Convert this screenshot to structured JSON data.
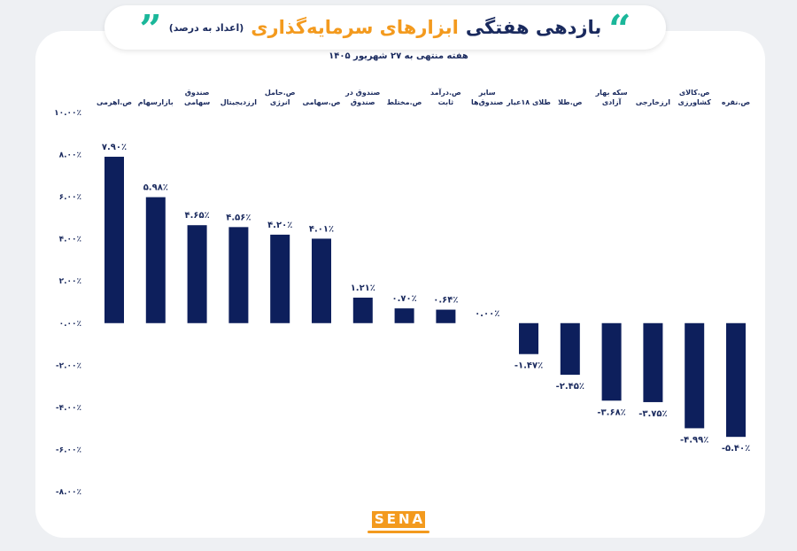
{
  "title": {
    "main": "بازدهی هفتگی",
    "accent": "ابزارهای سرمایه‌گذاری",
    "note": "(اعداد به درصد)",
    "open_quote": "“",
    "close_quote": "”"
  },
  "subtitle": "هفته منتهی به ۲۷ شهریور ۱۴۰۵",
  "logo": {
    "letters": [
      "S",
      "E",
      "N",
      "A"
    ]
  },
  "colors": {
    "bar": "#0d1f5c",
    "title": "#1a2a5e",
    "accent": "#f39a1e",
    "quote": "#1bb79a"
  },
  "chart_data": {
    "type": "bar",
    "categories": [
      [
        "ص.اهرمی"
      ],
      [
        "بازارسهام"
      ],
      [
        "صندوق",
        "سهامی"
      ],
      [
        "ارزدیجیتال"
      ],
      [
        "ص.حامل",
        "انرژی"
      ],
      [
        "ص.سهامی"
      ],
      [
        "صندوق در",
        "صندوق"
      ],
      [
        "ص.مختلط"
      ],
      [
        "ص.درآمد",
        "ثابت"
      ],
      [
        "سایر",
        "صندوق‌ها"
      ],
      [
        "طلای ۱۸عیار"
      ],
      [
        "ص.طلا"
      ],
      [
        "سکه بهار",
        "آزادی"
      ],
      [
        "ارزخارجی"
      ],
      [
        "ص.کالای",
        "کشاورزی"
      ],
      [
        "ص.نقره"
      ]
    ],
    "values": [
      7.9,
      5.98,
      4.65,
      4.56,
      4.2,
      4.01,
      1.21,
      0.7,
      0.64,
      0.0,
      -1.47,
      -2.45,
      -3.68,
      -3.75,
      -4.99,
      -5.4
    ],
    "value_labels": [
      "۷.۹۰٪",
      "۵.۹۸٪",
      "۴.۶۵٪",
      "۴.۵۶٪",
      "۴.۲۰٪",
      "۴.۰۱٪",
      "۱.۲۱٪",
      "۰.۷۰٪",
      "۰.۶۴٪",
      "۰.۰۰٪",
      "-۱.۴۷٪",
      "-۲.۴۵٪",
      "-۳.۶۸٪",
      "-۳.۷۵٪",
      "-۴.۹۹٪",
      "-۵.۴۰٪"
    ],
    "ylim": [
      -8,
      10
    ],
    "yticks": [
      10,
      8,
      6,
      4,
      2,
      0,
      -2,
      -4,
      -6,
      -8
    ],
    "ytick_labels": [
      "۱۰.۰۰٪",
      "۸.۰۰٪",
      "۶.۰۰٪",
      "۴.۰۰٪",
      "۲.۰۰٪",
      "۰.۰۰٪",
      "-۲.۰۰٪",
      "-۴.۰۰٪",
      "-۶.۰۰٪",
      "-۸.۰۰٪"
    ],
    "grid": false,
    "xlabel": "",
    "ylabel": ""
  }
}
